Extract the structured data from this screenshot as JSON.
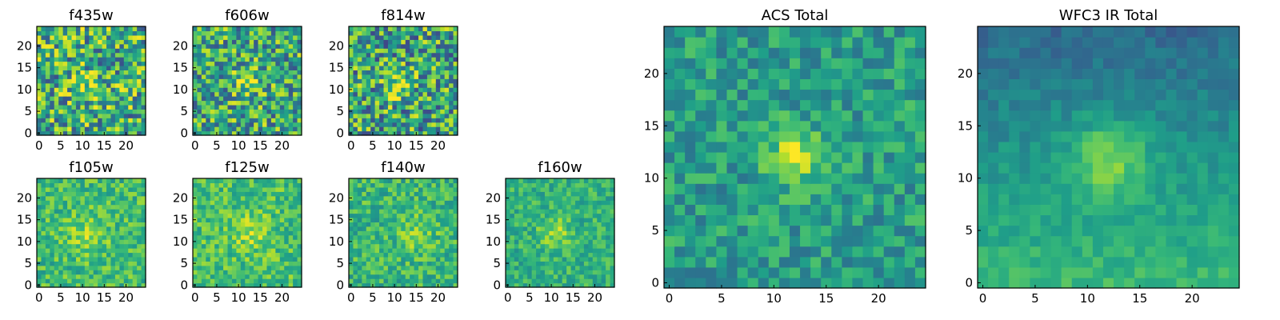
{
  "chart_data": {
    "type": "heatmap",
    "colormap": "viridis",
    "panels": [
      {
        "id": "f435w",
        "title": "f435w",
        "size": 25,
        "xticks": [
          0,
          5,
          10,
          15,
          20
        ],
        "yticks": [
          0,
          5,
          10,
          15,
          20
        ],
        "blob": {
          "cx": 11,
          "cy": 11,
          "sigma": 2.5,
          "amp": 0.18
        },
        "noise": 0.75,
        "base": 0.62,
        "seed": 11
      },
      {
        "id": "f606w",
        "title": "f606w",
        "size": 25,
        "xticks": [
          0,
          5,
          10,
          15,
          20
        ],
        "yticks": [
          0,
          5,
          10,
          15,
          20
        ],
        "blob": {
          "cx": 12,
          "cy": 12,
          "sigma": 2.0,
          "amp": 0.3
        },
        "noise": 0.7,
        "base": 0.6,
        "seed": 23
      },
      {
        "id": "f814w",
        "title": "f814w",
        "size": 25,
        "xticks": [
          0,
          5,
          10,
          15,
          20
        ],
        "yticks": [
          0,
          5,
          10,
          15,
          20
        ],
        "blob": {
          "cx": 11,
          "cy": 11,
          "sigma": 2.2,
          "amp": 0.3
        },
        "noise": 0.75,
        "base": 0.58,
        "seed": 37
      },
      {
        "id": "f105w",
        "title": "f105w",
        "size": 25,
        "xticks": [
          0,
          5,
          10,
          15,
          20
        ],
        "yticks": [
          0,
          5,
          10,
          15,
          20
        ],
        "blob": {
          "cx": 11,
          "cy": 12,
          "sigma": 3.5,
          "amp": 0.15
        },
        "noise": 0.35,
        "base": 0.68,
        "seed": 41
      },
      {
        "id": "f125w",
        "title": "f125w",
        "size": 25,
        "xticks": [
          0,
          5,
          10,
          15,
          20
        ],
        "yticks": [
          0,
          5,
          10,
          15,
          20
        ],
        "blob": {
          "cx": 13,
          "cy": 12,
          "sigma": 3.2,
          "amp": 0.15
        },
        "noise": 0.35,
        "base": 0.7,
        "seed": 53
      },
      {
        "id": "f140w",
        "title": "f140w",
        "size": 25,
        "xticks": [
          0,
          5,
          10,
          15,
          20
        ],
        "yticks": [
          0,
          5,
          10,
          15,
          20
        ],
        "blob": {
          "cx": 15,
          "cy": 12,
          "sigma": 3.0,
          "amp": 0.15
        },
        "noise": 0.35,
        "base": 0.66,
        "seed": 67
      },
      {
        "id": "f160w",
        "title": "f160w",
        "size": 25,
        "xticks": [
          0,
          5,
          10,
          15,
          20
        ],
        "yticks": [
          0,
          5,
          10,
          15,
          20
        ],
        "blob": {
          "cx": 11,
          "cy": 12,
          "sigma": 2.6,
          "amp": 0.2
        },
        "noise": 0.3,
        "base": 0.64,
        "seed": 79
      },
      {
        "id": "acs",
        "title": "ACS Total",
        "size": 25,
        "xticks": [
          0,
          5,
          10,
          15,
          20
        ],
        "yticks": [
          0,
          5,
          10,
          15,
          20
        ],
        "blob": {
          "cx": 12,
          "cy": 12,
          "sigma": 1.8,
          "amp": 0.4
        },
        "noise": 0.35,
        "base": 0.55,
        "seed": 97
      },
      {
        "id": "wfc3",
        "title": "WFC3 IR Total",
        "size": 25,
        "xticks": [
          0,
          5,
          10,
          15,
          20
        ],
        "yticks": [
          0,
          5,
          10,
          15,
          20
        ],
        "blob": {
          "cx": 12,
          "cy": 12,
          "sigma": 2.6,
          "amp": 0.28
        },
        "noise": 0.15,
        "base": 0.55,
        "seed": 113
      }
    ]
  }
}
